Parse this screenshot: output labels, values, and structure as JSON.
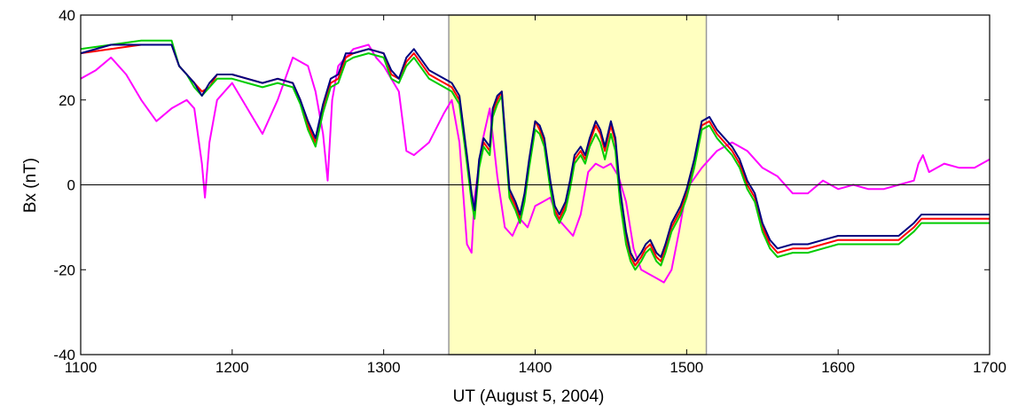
{
  "chart_data": {
    "type": "line",
    "title": "",
    "xlabel": "UT (August 5, 2004)",
    "ylabel": "Bx (nT)",
    "xlim": [
      1100,
      1700
    ],
    "ylim": [
      -40,
      40
    ],
    "xticks": [
      1100,
      1200,
      1300,
      1400,
      1500,
      1600,
      1700
    ],
    "yticks": [
      40,
      20,
      0,
      -20,
      -40
    ],
    "xtick_labels": [
      "1100",
      "1200",
      "1300",
      "1400",
      "1500",
      "1600",
      "1700"
    ],
    "ytick_labels": [
      "40",
      "20",
      "0",
      "-20",
      "-40"
    ],
    "grid": false,
    "legend": "none",
    "zero_line": true,
    "highlight": {
      "x_start": 1343,
      "x_end": 1513,
      "color": "#ffffc0"
    },
    "series": [
      {
        "color": "#ff00ff",
        "x": [
          1100,
          1110,
          1120,
          1130,
          1140,
          1150,
          1160,
          1170,
          1175,
          1180,
          1182,
          1185,
          1190,
          1200,
          1210,
          1220,
          1230,
          1240,
          1250,
          1255,
          1260,
          1263,
          1266,
          1270,
          1280,
          1290,
          1295,
          1300,
          1310,
          1315,
          1320,
          1330,
          1340,
          1345,
          1350,
          1355,
          1358,
          1360,
          1365,
          1370,
          1375,
          1380,
          1385,
          1390,
          1395,
          1400,
          1405,
          1410,
          1415,
          1420,
          1425,
          1430,
          1435,
          1440,
          1445,
          1450,
          1455,
          1460,
          1465,
          1470,
          1475,
          1480,
          1485,
          1490,
          1495,
          1500,
          1510,
          1520,
          1530,
          1540,
          1550,
          1560,
          1570,
          1580,
          1590,
          1600,
          1610,
          1620,
          1630,
          1640,
          1650,
          1653,
          1656,
          1660,
          1670,
          1680,
          1690,
          1700
        ],
        "y": [
          25,
          27,
          30,
          26,
          20,
          15,
          18,
          20,
          18,
          5,
          -3,
          10,
          20,
          24,
          18,
          12,
          20,
          30,
          28,
          22,
          12,
          1,
          20,
          28,
          32,
          33,
          30,
          28,
          22,
          8,
          7,
          10,
          17,
          20,
          10,
          -14,
          -16,
          -3,
          10,
          18,
          2,
          -10,
          -12,
          -8,
          -10,
          -5,
          -4,
          -3,
          -8,
          -10,
          -12,
          -7,
          3,
          5,
          4,
          5,
          2,
          -4,
          -15,
          -20,
          -21,
          -22,
          -23,
          -20,
          -11,
          -1,
          4,
          8,
          10,
          8,
          4,
          2,
          -2,
          -2,
          1,
          -1,
          0,
          -1,
          -1,
          0,
          1,
          5,
          7,
          3,
          5,
          4,
          4,
          6
        ]
      },
      {
        "color": "#ff0000",
        "x": [
          1100,
          1120,
          1140,
          1160,
          1165,
          1170,
          1175,
          1180,
          1185,
          1190,
          1200,
          1210,
          1220,
          1230,
          1240,
          1245,
          1250,
          1255,
          1260,
          1265,
          1270,
          1275,
          1280,
          1290,
          1300,
          1305,
          1310,
          1315,
          1320,
          1330,
          1340,
          1345,
          1350,
          1355,
          1358,
          1360,
          1363,
          1366,
          1370,
          1372,
          1375,
          1378,
          1380,
          1383,
          1387,
          1390,
          1393,
          1396,
          1400,
          1403,
          1406,
          1410,
          1413,
          1416,
          1420,
          1423,
          1426,
          1430,
          1433,
          1436,
          1440,
          1443,
          1446,
          1450,
          1453,
          1456,
          1460,
          1463,
          1466,
          1470,
          1473,
          1476,
          1480,
          1483,
          1486,
          1490,
          1493,
          1496,
          1500,
          1505,
          1510,
          1515,
          1520,
          1525,
          1530,
          1535,
          1540,
          1545,
          1550,
          1555,
          1560,
          1570,
          1580,
          1590,
          1600,
          1610,
          1620,
          1630,
          1640,
          1650,
          1655,
          1660,
          1670,
          1680,
          1690,
          1700
        ],
        "y": [
          31,
          32,
          33,
          33,
          28,
          26,
          24,
          22,
          23,
          26,
          26,
          25,
          24,
          25,
          24,
          20,
          14,
          10,
          18,
          24,
          25,
          30,
          31,
          32,
          31,
          26,
          25,
          29,
          31,
          26,
          24,
          23,
          20,
          6,
          -3,
          -7,
          5,
          10,
          8,
          17,
          20,
          22,
          12,
          -2,
          -5,
          -8,
          -3,
          5,
          15,
          13,
          10,
          0,
          -6,
          -8,
          -5,
          0,
          6,
          8,
          6,
          10,
          14,
          12,
          8,
          14,
          10,
          -2,
          -12,
          -17,
          -19,
          -17,
          -15,
          -14,
          -17,
          -18,
          -15,
          -10,
          -8,
          -6,
          -2,
          5,
          14,
          15,
          12,
          10,
          8,
          5,
          0,
          -3,
          -10,
          -14,
          -16,
          -15,
          -15,
          -14,
          -13,
          -13,
          -13,
          -13,
          -13,
          -10,
          -8,
          -8,
          -8,
          -8,
          -8,
          -8
        ]
      },
      {
        "color": "#00cc00",
        "x": [
          1100,
          1120,
          1140,
          1160,
          1165,
          1170,
          1175,
          1180,
          1185,
          1190,
          1200,
          1210,
          1220,
          1230,
          1240,
          1245,
          1250,
          1255,
          1260,
          1265,
          1270,
          1275,
          1280,
          1290,
          1300,
          1305,
          1310,
          1315,
          1320,
          1330,
          1340,
          1345,
          1350,
          1355,
          1358,
          1360,
          1363,
          1366,
          1370,
          1372,
          1375,
          1378,
          1380,
          1383,
          1387,
          1390,
          1393,
          1396,
          1400,
          1403,
          1406,
          1410,
          1413,
          1416,
          1420,
          1423,
          1426,
          1430,
          1433,
          1436,
          1440,
          1443,
          1446,
          1450,
          1453,
          1456,
          1460,
          1463,
          1466,
          1470,
          1473,
          1476,
          1480,
          1483,
          1486,
          1490,
          1493,
          1496,
          1500,
          1505,
          1510,
          1515,
          1520,
          1525,
          1530,
          1535,
          1540,
          1545,
          1550,
          1555,
          1560,
          1570,
          1580,
          1590,
          1600,
          1610,
          1620,
          1630,
          1640,
          1650,
          1655,
          1660,
          1670,
          1680,
          1690,
          1700
        ],
        "y": [
          32,
          33,
          34,
          34,
          28,
          26,
          23,
          21,
          23,
          25,
          25,
          24,
          23,
          24,
          23,
          19,
          13,
          9,
          17,
          23,
          24,
          29,
          30,
          31,
          30,
          25,
          24,
          28,
          30,
          25,
          23,
          22,
          19,
          5,
          -4,
          -8,
          4,
          9,
          7,
          16,
          19,
          21,
          11,
          -3,
          -6,
          -9,
          -4,
          4,
          13,
          12,
          9,
          -1,
          -7,
          -9,
          -6,
          -1,
          5,
          7,
          5,
          9,
          12,
          10,
          6,
          12,
          8,
          -4,
          -14,
          -18,
          -20,
          -18,
          -16,
          -15,
          -18,
          -19,
          -16,
          -11,
          -9,
          -7,
          -3,
          4,
          13,
          14,
          11,
          9,
          7,
          4,
          -1,
          -4,
          -11,
          -15,
          -17,
          -16,
          -16,
          -15,
          -14,
          -14,
          -14,
          -14,
          -14,
          -11,
          -9,
          -9,
          -9,
          -9,
          -9,
          -9
        ]
      },
      {
        "color": "#000080",
        "x": [
          1100,
          1120,
          1140,
          1160,
          1165,
          1170,
          1175,
          1180,
          1185,
          1190,
          1200,
          1210,
          1220,
          1230,
          1240,
          1245,
          1250,
          1255,
          1260,
          1265,
          1270,
          1275,
          1280,
          1290,
          1300,
          1305,
          1310,
          1315,
          1320,
          1330,
          1340,
          1345,
          1350,
          1355,
          1358,
          1360,
          1363,
          1366,
          1370,
          1372,
          1375,
          1378,
          1380,
          1383,
          1387,
          1390,
          1393,
          1396,
          1400,
          1403,
          1406,
          1410,
          1413,
          1416,
          1420,
          1423,
          1426,
          1430,
          1433,
          1436,
          1440,
          1443,
          1446,
          1450,
          1453,
          1456,
          1460,
          1463,
          1466,
          1470,
          1473,
          1476,
          1480,
          1483,
          1486,
          1490,
          1493,
          1496,
          1500,
          1505,
          1510,
          1515,
          1520,
          1525,
          1530,
          1535,
          1540,
          1545,
          1550,
          1555,
          1560,
          1570,
          1580,
          1590,
          1600,
          1610,
          1620,
          1630,
          1640,
          1650,
          1655,
          1660,
          1670,
          1680,
          1690,
          1700
        ],
        "y": [
          31,
          33,
          33,
          33,
          28,
          26,
          24,
          21,
          24,
          26,
          26,
          25,
          24,
          25,
          24,
          20,
          15,
          11,
          19,
          25,
          26,
          31,
          31,
          32,
          31,
          27,
          25,
          30,
          32,
          27,
          25,
          24,
          21,
          7,
          -2,
          -6,
          6,
          11,
          9,
          18,
          21,
          22,
          13,
          -1,
          -4,
          -7,
          -2,
          6,
          15,
          14,
          11,
          1,
          -5,
          -7,
          -4,
          1,
          7,
          9,
          7,
          11,
          15,
          13,
          9,
          15,
          11,
          -1,
          -11,
          -16,
          -18,
          -16,
          -14,
          -13,
          -16,
          -17,
          -14,
          -9,
          -7,
          -5,
          -1,
          6,
          15,
          16,
          13,
          11,
          9,
          6,
          1,
          -2,
          -9,
          -13,
          -15,
          -14,
          -14,
          -13,
          -12,
          -12,
          -12,
          -12,
          -12,
          -9,
          -7,
          -7,
          -7,
          -7,
          -7,
          -7
        ]
      }
    ]
  }
}
